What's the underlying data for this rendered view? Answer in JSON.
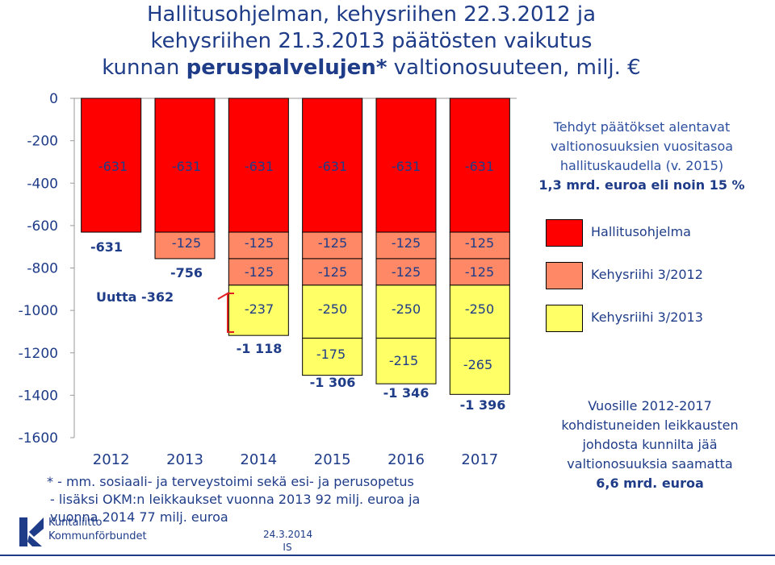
{
  "title": {
    "line1": "Hallitusohjelman, kehysriihen 22.3.2012 ja",
    "line2": "kehysriihen 21.3.2013 päätösten vaikutus",
    "line3_prefix": "kunnan ",
    "line3_bold": "peruspalvelujen*",
    "line3_suffix": " valtionosuuteen, milj. €"
  },
  "note_top": {
    "line1": "Tehdyt päätökset  alentavat",
    "line2": "valtionosuuksien vuositasoa",
    "line3": "hallituskaudella (v. 2015)",
    "line4": "1,3 mrd. euroa eli noin 15 %"
  },
  "legend": [
    {
      "label": "Hallitusohjelma",
      "color": "#ff0000"
    },
    {
      "label": "Kehysriihi 3/2012",
      "color": "#ff8866"
    },
    {
      "label": "Kehysriihi 3/2013",
      "color": "#ffff66"
    }
  ],
  "note_bottom": {
    "line1": "Vuosille 2012-2017",
    "line2": "kohdistuneiden leikkausten",
    "line3": "johdosta kunnilta jää",
    "line4": "valtionosuuksia saamatta",
    "line5": "6,6 mrd. euroa"
  },
  "footnote": {
    "line1": "* - mm. sosiaali- ja terveystoimi sekä esi- ja perusopetus",
    "line2": "- lisäksi OKM:n leikkaukset vuonna 2013 92 milj. euroa ja",
    "line3": "vuonna 2014 77 milj. euroa"
  },
  "logo": {
    "line1": "Kuntaliitto",
    "line2": "Kommunförbundet"
  },
  "date": {
    "line1": "24.3.2014",
    "line2": "IS"
  },
  "chart_data": {
    "type": "bar",
    "stacked": true,
    "categories": [
      "2012",
      "2013",
      "2014",
      "2015",
      "2016",
      "2017"
    ],
    "ylim": [
      -1600,
      0
    ],
    "yticks": [
      "0",
      "-200",
      "-400",
      "-600",
      "-800",
      "-1000",
      "-1200",
      "-1400",
      "-1600"
    ],
    "series": [
      {
        "color": "#ff0000",
        "values": [
          -631,
          -631,
          -631,
          -631,
          -631,
          -631
        ],
        "labels": [
          "-631",
          "-631",
          "-631",
          "-631",
          "-631",
          "-631"
        ]
      },
      {
        "color": "#ff8866",
        "values": [
          0,
          -125,
          -125,
          -125,
          -125,
          -125
        ],
        "labels": [
          "",
          "-125",
          "-125",
          "-125",
          "-125",
          "-125"
        ]
      },
      {
        "color": "#ff8866",
        "values": [
          0,
          0,
          -125,
          -125,
          -125,
          -125
        ],
        "labels": [
          "",
          "",
          "-125",
          "-125",
          "-125",
          "-125"
        ]
      },
      {
        "color": "#ffff66",
        "values": [
          0,
          0,
          -237,
          -250,
          -250,
          -250
        ],
        "labels": [
          "",
          "",
          "-237",
          "-250",
          "-250",
          "-250"
        ]
      },
      {
        "color": "#ffff66",
        "values": [
          0,
          0,
          0,
          -175,
          -215,
          -265
        ],
        "labels": [
          "",
          "",
          "",
          "-175",
          "-215",
          "-265"
        ]
      }
    ],
    "totals": [
      "-631",
      "-756",
      "-1 118",
      "-1 306",
      "-1 346",
      "-1 396"
    ],
    "annotation": "Uutta -362"
  }
}
